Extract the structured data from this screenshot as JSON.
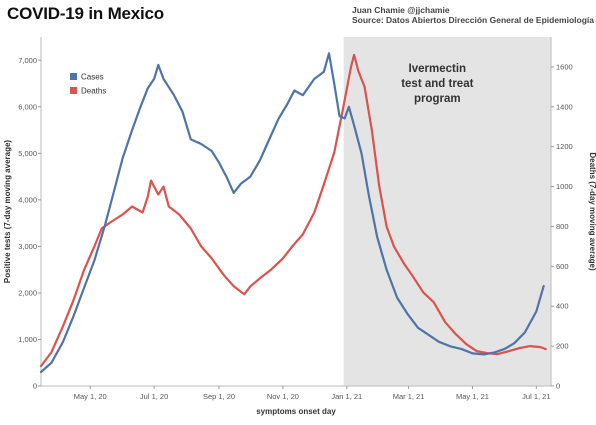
{
  "header": {
    "title": "COVID-19 in Mexico",
    "author": "Juan Chamie @jjchamie",
    "source": "Source: Datos Abiertos Dirección General de Epidemiología"
  },
  "chart_data": {
    "type": "line",
    "title": "COVID-19 in Mexico",
    "xlabel": "symptoms onset day",
    "ylabel_left": "Positive tests (7-day moving average)",
    "ylabel_right": "Deaths (7-day moving average)",
    "x_range": [
      "2020-03-15",
      "2021-07-15"
    ],
    "x_ticks": [
      {
        "date": "2020-05-01",
        "label": "May 1, 20"
      },
      {
        "date": "2020-07-01",
        "label": "Jul 1, 20"
      },
      {
        "date": "2020-09-01",
        "label": "Sep 1, 20"
      },
      {
        "date": "2020-11-01",
        "label": "Nov 1, 20"
      },
      {
        "date": "2021-01-01",
        "label": "Jan 1, 21"
      },
      {
        "date": "2021-03-01",
        "label": "Mar 1, 21"
      },
      {
        "date": "2021-05-01",
        "label": "May 1, 21"
      },
      {
        "date": "2021-07-01",
        "label": "Jul 1, 21"
      }
    ],
    "y_left_range": [
      0,
      7500
    ],
    "y_left_ticks": [
      {
        "value": 0,
        "label": "0"
      },
      {
        "value": 1000,
        "label": "1,000"
      },
      {
        "value": 2000,
        "label": "2,000"
      },
      {
        "value": 3000,
        "label": "3,000"
      },
      {
        "value": 4000,
        "label": "4,000"
      },
      {
        "value": 5000,
        "label": "5,000"
      },
      {
        "value": 6000,
        "label": "6,000"
      },
      {
        "value": 7000,
        "label": "7,000"
      }
    ],
    "y_right_range": [
      0,
      1750
    ],
    "y_right_ticks": [
      {
        "value": 0,
        "label": "0"
      },
      {
        "value": 200,
        "label": "200"
      },
      {
        "value": 400,
        "label": "400"
      },
      {
        "value": 600,
        "label": "600"
      },
      {
        "value": 800,
        "label": "800"
      },
      {
        "value": 1000,
        "label": "1000"
      },
      {
        "value": 1200,
        "label": "1200"
      },
      {
        "value": 1400,
        "label": "1400"
      },
      {
        "value": 1600,
        "label": "1600"
      }
    ],
    "grid": false,
    "legend_position": "top-left",
    "shaded_region": {
      "start": "2020-12-29",
      "end": "2021-07-15",
      "color": "#e4e4e4",
      "label_lines": [
        "Ivermectin",
        "test and treat",
        "program"
      ]
    },
    "series": [
      {
        "name": "Cases",
        "axis": "left",
        "color": "#4f74a8",
        "points": [
          [
            "2020-03-15",
            300
          ],
          [
            "2020-03-25",
            500
          ],
          [
            "2020-04-05",
            950
          ],
          [
            "2020-04-15",
            1500
          ],
          [
            "2020-04-25",
            2100
          ],
          [
            "2020-05-05",
            2700
          ],
          [
            "2020-05-15",
            3450
          ],
          [
            "2020-05-25",
            4300
          ],
          [
            "2020-06-01",
            4900
          ],
          [
            "2020-06-10",
            5500
          ],
          [
            "2020-06-18",
            6000
          ],
          [
            "2020-06-25",
            6400
          ],
          [
            "2020-07-01",
            6600
          ],
          [
            "2020-07-05",
            6900
          ],
          [
            "2020-07-10",
            6600
          ],
          [
            "2020-07-20",
            6250
          ],
          [
            "2020-07-28",
            5900
          ],
          [
            "2020-08-05",
            5300
          ],
          [
            "2020-08-15",
            5200
          ],
          [
            "2020-08-25",
            5050
          ],
          [
            "2020-09-01",
            4800
          ],
          [
            "2020-09-08",
            4500
          ],
          [
            "2020-09-15",
            4150
          ],
          [
            "2020-09-22",
            4350
          ],
          [
            "2020-10-01",
            4500
          ],
          [
            "2020-10-10",
            4850
          ],
          [
            "2020-10-20",
            5350
          ],
          [
            "2020-10-28",
            5750
          ],
          [
            "2020-11-05",
            6050
          ],
          [
            "2020-11-12",
            6350
          ],
          [
            "2020-11-20",
            6250
          ],
          [
            "2020-12-01",
            6600
          ],
          [
            "2020-12-10",
            6750
          ],
          [
            "2020-12-15",
            7150
          ],
          [
            "2020-12-20",
            6500
          ],
          [
            "2020-12-25",
            5800
          ],
          [
            "2020-12-30",
            5750
          ],
          [
            "2021-01-03",
            6000
          ],
          [
            "2021-01-08",
            5600
          ],
          [
            "2021-01-15",
            5000
          ],
          [
            "2021-01-22",
            4100
          ],
          [
            "2021-01-30",
            3200
          ],
          [
            "2021-02-08",
            2500
          ],
          [
            "2021-02-18",
            1900
          ],
          [
            "2021-02-28",
            1550
          ],
          [
            "2021-03-10",
            1250
          ],
          [
            "2021-03-20",
            1100
          ],
          [
            "2021-03-30",
            950
          ],
          [
            "2021-04-10",
            850
          ],
          [
            "2021-04-20",
            800
          ],
          [
            "2021-05-01",
            700
          ],
          [
            "2021-05-12",
            680
          ],
          [
            "2021-05-22",
            720
          ],
          [
            "2021-06-01",
            800
          ],
          [
            "2021-06-10",
            920
          ],
          [
            "2021-06-20",
            1150
          ],
          [
            "2021-07-01",
            1600
          ],
          [
            "2021-07-08",
            2150
          ]
        ]
      },
      {
        "name": "Deaths",
        "axis": "right",
        "color": "#d9534f",
        "points": [
          [
            "2020-03-15",
            100
          ],
          [
            "2020-03-25",
            170
          ],
          [
            "2020-04-05",
            300
          ],
          [
            "2020-04-15",
            430
          ],
          [
            "2020-04-25",
            580
          ],
          [
            "2020-05-05",
            700
          ],
          [
            "2020-05-12",
            790
          ],
          [
            "2020-05-20",
            820
          ],
          [
            "2020-06-01",
            860
          ],
          [
            "2020-06-10",
            900
          ],
          [
            "2020-06-20",
            870
          ],
          [
            "2020-06-25",
            950
          ],
          [
            "2020-06-28",
            1030
          ],
          [
            "2020-07-05",
            960
          ],
          [
            "2020-07-10",
            1000
          ],
          [
            "2020-07-15",
            900
          ],
          [
            "2020-07-25",
            860
          ],
          [
            "2020-08-05",
            790
          ],
          [
            "2020-08-15",
            700
          ],
          [
            "2020-08-25",
            640
          ],
          [
            "2020-09-05",
            560
          ],
          [
            "2020-09-15",
            500
          ],
          [
            "2020-09-25",
            460
          ],
          [
            "2020-10-01",
            500
          ],
          [
            "2020-10-10",
            540
          ],
          [
            "2020-10-20",
            580
          ],
          [
            "2020-11-01",
            640
          ],
          [
            "2020-11-10",
            700
          ],
          [
            "2020-11-20",
            760
          ],
          [
            "2020-12-01",
            870
          ],
          [
            "2020-12-10",
            1010
          ],
          [
            "2020-12-20",
            1170
          ],
          [
            "2020-12-28",
            1380
          ],
          [
            "2021-01-05",
            1600
          ],
          [
            "2021-01-08",
            1660
          ],
          [
            "2021-01-12",
            1580
          ],
          [
            "2021-01-18",
            1500
          ],
          [
            "2021-01-25",
            1280
          ],
          [
            "2021-02-01",
            1000
          ],
          [
            "2021-02-08",
            800
          ],
          [
            "2021-02-15",
            700
          ],
          [
            "2021-02-25",
            610
          ],
          [
            "2021-03-05",
            550
          ],
          [
            "2021-03-15",
            470
          ],
          [
            "2021-03-25",
            420
          ],
          [
            "2021-04-05",
            320
          ],
          [
            "2021-04-15",
            260
          ],
          [
            "2021-04-25",
            210
          ],
          [
            "2021-05-05",
            175
          ],
          [
            "2021-05-15",
            165
          ],
          [
            "2021-05-25",
            160
          ],
          [
            "2021-06-05",
            175
          ],
          [
            "2021-06-15",
            190
          ],
          [
            "2021-06-25",
            200
          ],
          [
            "2021-07-05",
            195
          ],
          [
            "2021-07-10",
            185
          ]
        ]
      }
    ]
  }
}
